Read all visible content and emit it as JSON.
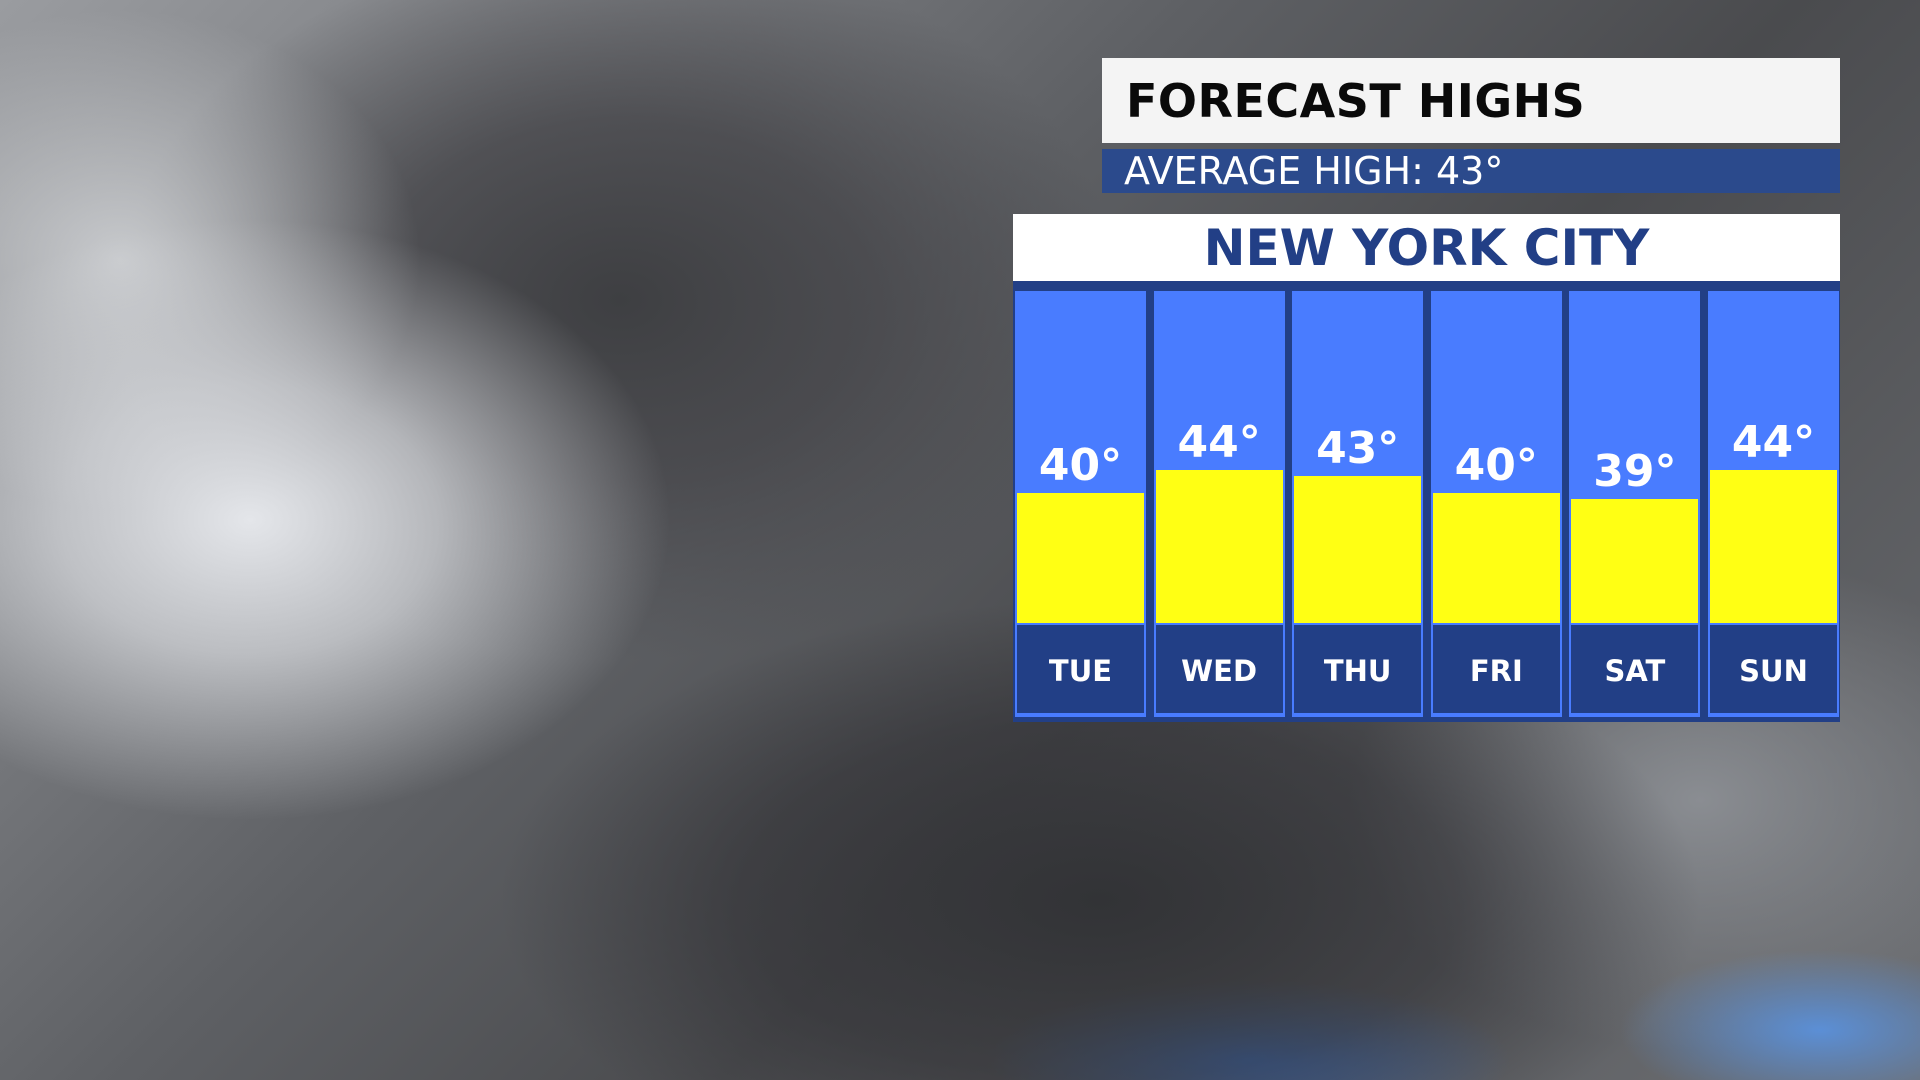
{
  "header": {
    "title": "FORECAST HIGHS",
    "average": "AVERAGE HIGH: 43°"
  },
  "colors": {
    "bar": "#ffff14",
    "column": "#497cff",
    "navy": "#223f86"
  },
  "chart_data": {
    "type": "bar",
    "title": "NEW YORK CITY",
    "categories": [
      "TUE",
      "WED",
      "THU",
      "FRI",
      "SAT",
      "SUN"
    ],
    "values": [
      40,
      44,
      43,
      40,
      39,
      44
    ],
    "labels": [
      "40°",
      "44°",
      "43°",
      "40°",
      "39°",
      "44°"
    ]
  }
}
